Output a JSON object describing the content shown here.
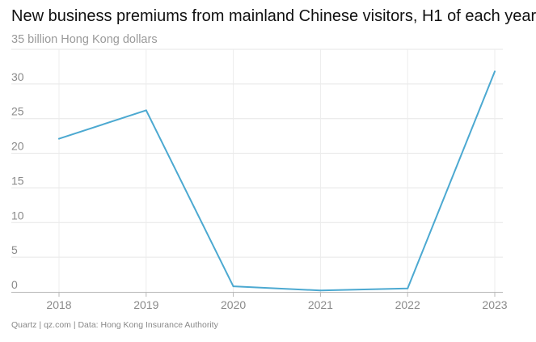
{
  "chart_data": {
    "type": "line",
    "title": "New business premiums from mainland Chinese visitors, H1 of each year",
    "subtitle": "35 billion Hong Kong dollars",
    "xlabel": "",
    "ylabel": "",
    "categories": [
      "2018",
      "2019",
      "2020",
      "2021",
      "2022",
      "2023"
    ],
    "series": [
      {
        "name": "New business premiums",
        "color": "#4ca9d1",
        "values": [
          22.1,
          26.2,
          0.8,
          0.2,
          0.5,
          31.8
        ]
      }
    ],
    "ylim": [
      0,
      35
    ],
    "yticks": [
      0,
      5,
      10,
      15,
      20,
      25,
      30
    ],
    "grid": true
  },
  "footer": {
    "source": "Quartz | qz.com | Data: Hong Kong Insurance Authority"
  }
}
